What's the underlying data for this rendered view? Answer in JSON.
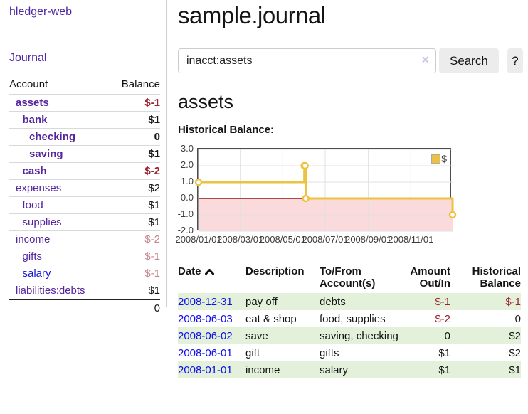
{
  "colors": {
    "link_purple": "#55279d",
    "link_blue": "#1616d9",
    "negative_red": "#9d2330",
    "negative_faded_red": "#c8878d",
    "row_shade_green": "#e3f0da",
    "button_gray": "#ececec"
  },
  "sidebar": {
    "brand": "hledger-web",
    "nav": {
      "journal": "Journal"
    },
    "accounts_table": {
      "headers": {
        "account": "Account",
        "balance": "Balance"
      },
      "rows": [
        {
          "name": "assets",
          "depth": 0,
          "bold": true,
          "blue": false,
          "balance": "$-1",
          "balance_style": "neg"
        },
        {
          "name": "bank",
          "depth": 1,
          "bold": true,
          "blue": false,
          "balance": "$1",
          "balance_style": "pos"
        },
        {
          "name": "checking",
          "depth": 2,
          "bold": true,
          "blue": false,
          "balance": "0",
          "balance_style": "pos"
        },
        {
          "name": "saving",
          "depth": 2,
          "bold": true,
          "blue": false,
          "balance": "$1",
          "balance_style": "pos"
        },
        {
          "name": "cash",
          "depth": 1,
          "bold": true,
          "blue": false,
          "balance": "$-2",
          "balance_style": "neg"
        },
        {
          "name": "expenses",
          "depth": 0,
          "bold": false,
          "blue": false,
          "balance": "$2",
          "balance_style": "pos"
        },
        {
          "name": "food",
          "depth": 1,
          "bold": false,
          "blue": false,
          "balance": "$1",
          "balance_style": "pos"
        },
        {
          "name": "supplies",
          "depth": 1,
          "bold": false,
          "blue": false,
          "balance": "$1",
          "balance_style": "pos"
        },
        {
          "name": "income",
          "depth": 0,
          "bold": false,
          "blue": false,
          "balance": "$-2",
          "balance_style": "neg-faded"
        },
        {
          "name": "gifts",
          "depth": 1,
          "bold": false,
          "blue": false,
          "balance": "$-1",
          "balance_style": "neg-faded"
        },
        {
          "name": "salary",
          "depth": 1,
          "bold": false,
          "blue": true,
          "balance": "$-1",
          "balance_style": "neg-faded"
        },
        {
          "name": "liabilities:debts",
          "depth": 0,
          "bold": false,
          "blue": false,
          "balance": "$1",
          "balance_style": "pos"
        }
      ],
      "total": "0"
    }
  },
  "header": {
    "title": "sample.journal"
  },
  "search": {
    "value": "inacct:assets",
    "clear_icon": "×",
    "button": "Search",
    "help_button": "?"
  },
  "account_page": {
    "heading": "assets",
    "chart_label": "Historical Balance:"
  },
  "chart_data": {
    "type": "line",
    "style": "step",
    "title": "Historical Balance",
    "series": [
      {
        "name": "$",
        "color": "#EDC240",
        "points": [
          [
            "2008-01-01",
            1
          ],
          [
            "2008-06-01",
            2
          ],
          [
            "2008-06-02",
            2
          ],
          [
            "2008-06-03",
            0
          ],
          [
            "2008-12-31",
            -1
          ]
        ]
      }
    ],
    "x_range": [
      "2008-01-01",
      "2008-12-31"
    ],
    "x_ticks": [
      "2008/01/01",
      "2008/03/01",
      "2008/05/01",
      "2008/07/01",
      "2008/09/01",
      "2008/11/01"
    ],
    "y_ticks": [
      3.0,
      2.0,
      1.0,
      0.0,
      -1.0,
      -2.0
    ],
    "ylim": [
      -2,
      3
    ],
    "legend": "$",
    "legend_position": "top-right",
    "grid": true,
    "grid_color": "#e0e0e0",
    "border_color": "#4d4d4d",
    "negative_region_color": "#fbdadb",
    "zero_line_color": "#8c1a1a"
  },
  "transactions": {
    "headers": {
      "date": "Date",
      "description": "Description",
      "tofrom": "To/From Account(s)",
      "amount": "Amount Out/In",
      "balance": "Historical Balance"
    },
    "rows": [
      {
        "date": "2008-12-31",
        "description": "pay off",
        "accounts": "debts",
        "amount": "$-1",
        "amount_style": "neg",
        "balance": "$-1",
        "balance_style": "neg",
        "shaded": true
      },
      {
        "date": "2008-06-03",
        "description": "eat & shop",
        "accounts": "food, supplies",
        "amount": "$-2",
        "amount_style": "neg",
        "balance": "0",
        "balance_style": "pos",
        "shaded": false
      },
      {
        "date": "2008-06-02",
        "description": "save",
        "accounts": "saving, checking",
        "amount": "0",
        "amount_style": "pos",
        "balance": "$2",
        "balance_style": "pos",
        "shaded": true
      },
      {
        "date": "2008-06-01",
        "description": "gift",
        "accounts": "gifts",
        "amount": "$1",
        "amount_style": "pos",
        "balance": "$2",
        "balance_style": "pos",
        "shaded": false
      },
      {
        "date": "2008-01-01",
        "description": "income",
        "accounts": "salary",
        "amount": "$1",
        "amount_style": "pos",
        "balance": "$1",
        "balance_style": "pos",
        "shaded": true
      }
    ]
  }
}
